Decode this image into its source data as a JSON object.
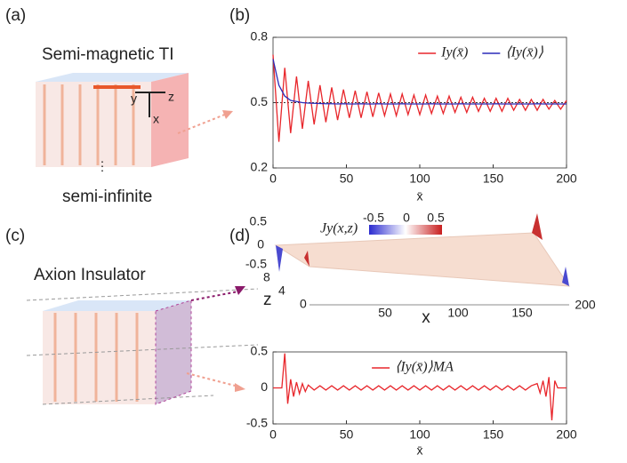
{
  "panels": {
    "a": {
      "label": "(a)",
      "title": "Semi-magnetic TI",
      "axes": [
        "y",
        "z",
        "x"
      ],
      "ellipsis": "⋮",
      "caption": "semi-infinite"
    },
    "b": {
      "label": "(b)"
    },
    "c": {
      "label": "(c)",
      "title": "Axion Insulator"
    },
    "d": {
      "label": "(d)",
      "surface": {
        "title": "Jy(x,z)",
        "colorbar_ticks": [
          -0.5,
          0,
          0.5
        ],
        "zticks": [
          -0.5,
          0,
          0.5
        ],
        "yticks": [
          0,
          4,
          8
        ],
        "y_label": "z",
        "xticks": [
          50,
          100,
          150,
          200
        ],
        "x_label": "x"
      }
    }
  },
  "chart_data": [
    {
      "type": "line",
      "x_label": "x̄",
      "legend": "upper right",
      "x": [
        0,
        4,
        8,
        12,
        16,
        20,
        24,
        28,
        32,
        36,
        40,
        44,
        48,
        52,
        56,
        60,
        64,
        68,
        72,
        76,
        80,
        84,
        88,
        92,
        96,
        100,
        104,
        108,
        112,
        116,
        120,
        124,
        128,
        132,
        136,
        140,
        144,
        148,
        152,
        156,
        160,
        164,
        168,
        172,
        176,
        180,
        184,
        188,
        192,
        196,
        200
      ],
      "series": [
        {
          "name": "Iy(x̄)",
          "color": "#e8262b",
          "values": [
            0.72,
            0.32,
            0.66,
            0.36,
            0.62,
            0.38,
            0.6,
            0.4,
            0.58,
            0.41,
            0.57,
            0.42,
            0.56,
            0.43,
            0.555,
            0.43,
            0.55,
            0.435,
            0.545,
            0.44,
            0.54,
            0.44,
            0.54,
            0.445,
            0.535,
            0.445,
            0.535,
            0.45,
            0.53,
            0.45,
            0.53,
            0.455,
            0.525,
            0.455,
            0.525,
            0.46,
            0.52,
            0.46,
            0.52,
            0.46,
            0.52,
            0.465,
            0.515,
            0.465,
            0.515,
            0.465,
            0.515,
            0.47,
            0.51,
            0.47,
            0.51
          ]
        },
        {
          "name": "⟨Iy(x̄)⟩",
          "color": "#2a2ab8",
          "values": [
            0.7,
            0.58,
            0.53,
            0.51,
            0.505,
            0.5,
            0.498,
            0.497,
            0.496,
            0.495,
            0.495,
            0.494,
            0.495,
            0.494,
            0.494,
            0.495,
            0.494,
            0.494,
            0.495,
            0.494,
            0.494,
            0.494,
            0.495,
            0.494,
            0.494,
            0.494,
            0.494,
            0.495,
            0.494,
            0.494,
            0.494,
            0.494,
            0.495,
            0.494,
            0.494,
            0.494,
            0.494,
            0.494,
            0.495,
            0.494,
            0.494,
            0.494,
            0.494,
            0.494,
            0.494,
            0.495,
            0.494,
            0.494,
            0.494,
            0.494,
            0.494
          ]
        }
      ],
      "reference_line": 0.5,
      "xlim": [
        0,
        200
      ],
      "xticks": [
        0,
        50,
        100,
        150,
        200
      ],
      "ylim": [
        0.2,
        0.8
      ],
      "yticks": [
        0.2,
        0.5,
        0.8
      ]
    },
    {
      "type": "line",
      "x_label": "x̄",
      "legend": "upper center",
      "x": [
        0,
        6,
        8,
        10,
        12,
        14,
        16,
        18,
        20,
        22,
        24,
        28,
        32,
        36,
        40,
        44,
        48,
        52,
        56,
        60,
        64,
        68,
        72,
        76,
        80,
        84,
        88,
        92,
        96,
        100,
        104,
        108,
        112,
        116,
        120,
        124,
        128,
        132,
        136,
        140,
        144,
        148,
        152,
        156,
        160,
        164,
        168,
        172,
        176,
        180,
        182,
        184,
        186,
        188,
        190,
        192,
        194,
        200
      ],
      "series": [
        {
          "name": "⟨Iy(x̄)⟩MA",
          "color": "#e8262b",
          "values": [
            0,
            0,
            0.48,
            -0.22,
            0.12,
            -0.12,
            0.08,
            -0.08,
            0.06,
            -0.05,
            0.04,
            -0.03,
            0.03,
            -0.03,
            0.03,
            -0.03,
            0.03,
            -0.03,
            0.03,
            -0.03,
            0.03,
            -0.03,
            0.03,
            -0.03,
            0.03,
            -0.03,
            0.03,
            -0.03,
            0.03,
            -0.03,
            0.03,
            -0.03,
            0.03,
            -0.03,
            0.03,
            -0.03,
            0.03,
            -0.03,
            0.03,
            -0.03,
            0.03,
            -0.03,
            0.03,
            -0.03,
            0.03,
            -0.03,
            0.03,
            -0.03,
            0.03,
            0.06,
            -0.07,
            0.1,
            -0.12,
            0.15,
            -0.45,
            0.1,
            0,
            0
          ]
        }
      ],
      "xlim": [
        0,
        200
      ],
      "xticks": [
        0,
        50,
        100,
        150,
        200
      ],
      "ylim": [
        -0.5,
        0.5
      ],
      "yticks": [
        -0.5,
        0,
        0.5
      ]
    }
  ]
}
